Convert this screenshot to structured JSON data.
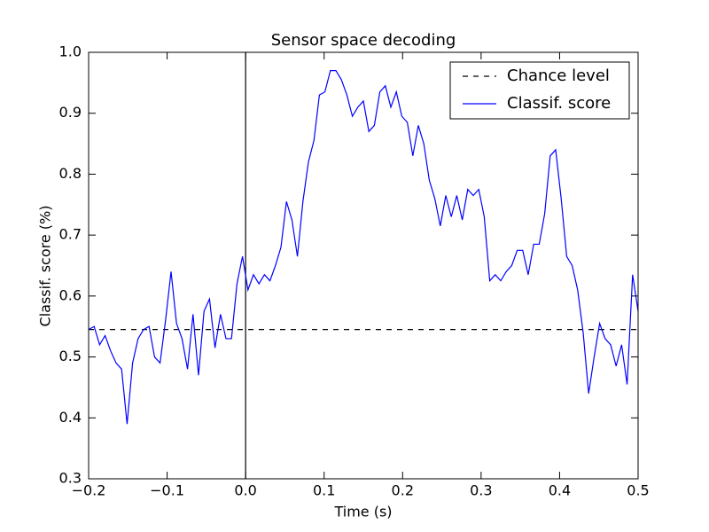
{
  "chart_data": {
    "type": "line",
    "title": "Sensor space decoding",
    "xlabel": "Time (s)",
    "ylabel": "Classif. score (%)",
    "x": [
      -0.2,
      -0.193,
      -0.186,
      -0.179,
      -0.172,
      -0.165,
      -0.158,
      -0.151,
      -0.144,
      -0.137,
      -0.13,
      -0.123,
      -0.116,
      -0.109,
      -0.102,
      -0.095,
      -0.088,
      -0.081,
      -0.074,
      -0.067,
      -0.06,
      -0.053,
      -0.046,
      -0.039,
      -0.032,
      -0.025,
      -0.018,
      -0.011,
      -0.004,
      0.003,
      0.01,
      0.017,
      0.024,
      0.031,
      0.038,
      0.045,
      0.052,
      0.059,
      0.066,
      0.073,
      0.08,
      0.087,
      0.094,
      0.101,
      0.108,
      0.115,
      0.122,
      0.129,
      0.136,
      0.143,
      0.15,
      0.157,
      0.164,
      0.171,
      0.178,
      0.185,
      0.192,
      0.199,
      0.206,
      0.213,
      0.22,
      0.227,
      0.234,
      0.241,
      0.248,
      0.255,
      0.262,
      0.269,
      0.276,
      0.283,
      0.29,
      0.297,
      0.304,
      0.311,
      0.318,
      0.325,
      0.332,
      0.339,
      0.346,
      0.353,
      0.36,
      0.367,
      0.374,
      0.381,
      0.388,
      0.395,
      0.402,
      0.409,
      0.416,
      0.423,
      0.43,
      0.437,
      0.444,
      0.451,
      0.458,
      0.465,
      0.472,
      0.479,
      0.486,
      0.493,
      0.5
    ],
    "series": [
      {
        "name": "Chance level",
        "color": "#000000",
        "linestyle": "dashed",
        "value": 0.545
      },
      {
        "name": "Classif. score",
        "color": "#0000ff",
        "linestyle": "solid",
        "values": [
          0.545,
          0.55,
          0.52,
          0.535,
          0.51,
          0.49,
          0.48,
          0.39,
          0.49,
          0.53,
          0.545,
          0.55,
          0.5,
          0.49,
          0.56,
          0.64,
          0.555,
          0.53,
          0.48,
          0.57,
          0.47,
          0.575,
          0.595,
          0.515,
          0.57,
          0.53,
          0.53,
          0.62,
          0.665,
          0.61,
          0.635,
          0.62,
          0.635,
          0.625,
          0.65,
          0.68,
          0.755,
          0.725,
          0.665,
          0.755,
          0.82,
          0.855,
          0.93,
          0.935,
          0.97,
          0.97,
          0.955,
          0.93,
          0.895,
          0.91,
          0.92,
          0.87,
          0.88,
          0.935,
          0.945,
          0.91,
          0.935,
          0.895,
          0.885,
          0.83,
          0.88,
          0.85,
          0.79,
          0.76,
          0.715,
          0.765,
          0.73,
          0.765,
          0.725,
          0.775,
          0.765,
          0.775,
          0.73,
          0.625,
          0.635,
          0.625,
          0.64,
          0.65,
          0.675,
          0.675,
          0.635,
          0.685,
          0.685,
          0.735,
          0.83,
          0.84,
          0.76,
          0.665,
          0.65,
          0.61,
          0.54,
          0.44,
          0.5,
          0.555,
          0.53,
          0.52,
          0.485,
          0.52,
          0.455,
          0.635,
          0.575
        ]
      }
    ],
    "vline": 0,
    "vline_color": "#000000",
    "xlim": [
      -0.2,
      0.5
    ],
    "xticks": [
      {
        "value": -0.2,
        "label": "−0.2"
      },
      {
        "value": -0.1,
        "label": "−0.1"
      },
      {
        "value": 0,
        "label": "0.0"
      },
      0.1,
      0.2,
      0.3,
      0.4,
      0.5
    ],
    "ylim": [
      0.3,
      1.0
    ],
    "yticks": [
      0.3,
      0.4,
      0.5,
      0.6,
      0.7,
      0.8,
      0.9,
      {
        "value": 1.0,
        "label": "1.0"
      }
    ],
    "grid": false,
    "legend": "upper right"
  }
}
